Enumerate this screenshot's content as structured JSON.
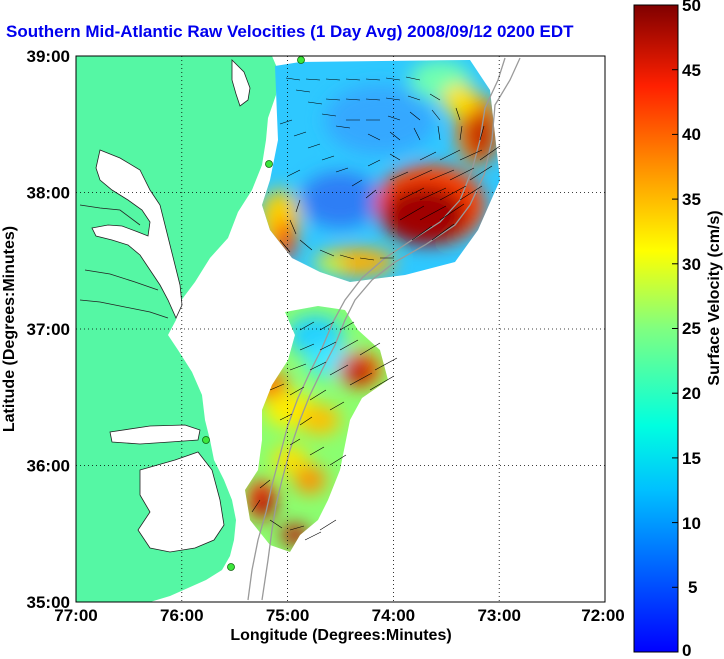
{
  "title": "Southern Mid-Atlantic Raw Velocities (1 Day Avg) 2008/09/12 0200 EDT",
  "x_axis": {
    "label": "Longitude (Degrees:Minutes)",
    "ticks": [
      "77:00",
      "76:00",
      "75:00",
      "74:00",
      "73:00",
      "72:00"
    ]
  },
  "y_axis": {
    "label": "Latitude (Degrees:Minutes)",
    "ticks": [
      "39:00",
      "38:00",
      "37:00",
      "36:00",
      "35:00"
    ]
  },
  "colorbar": {
    "label": "Surface Velocity (cm/s)",
    "ticks": [
      "50",
      "45",
      "40",
      "35",
      "30",
      "25",
      "20",
      "15",
      "10",
      "5",
      "0"
    ],
    "min": 0,
    "max": 50,
    "colormap": "jet"
  },
  "colors": {
    "land": "#55f7a4",
    "water": "#ffffff",
    "title": "#0000ee",
    "grid": "#000000",
    "station": "#3ce63c"
  },
  "extent": {
    "lon_min": -77,
    "lon_max": -72,
    "lat_min": 35,
    "lat_max": 39
  },
  "grid": "dotted",
  "stations": 4
}
